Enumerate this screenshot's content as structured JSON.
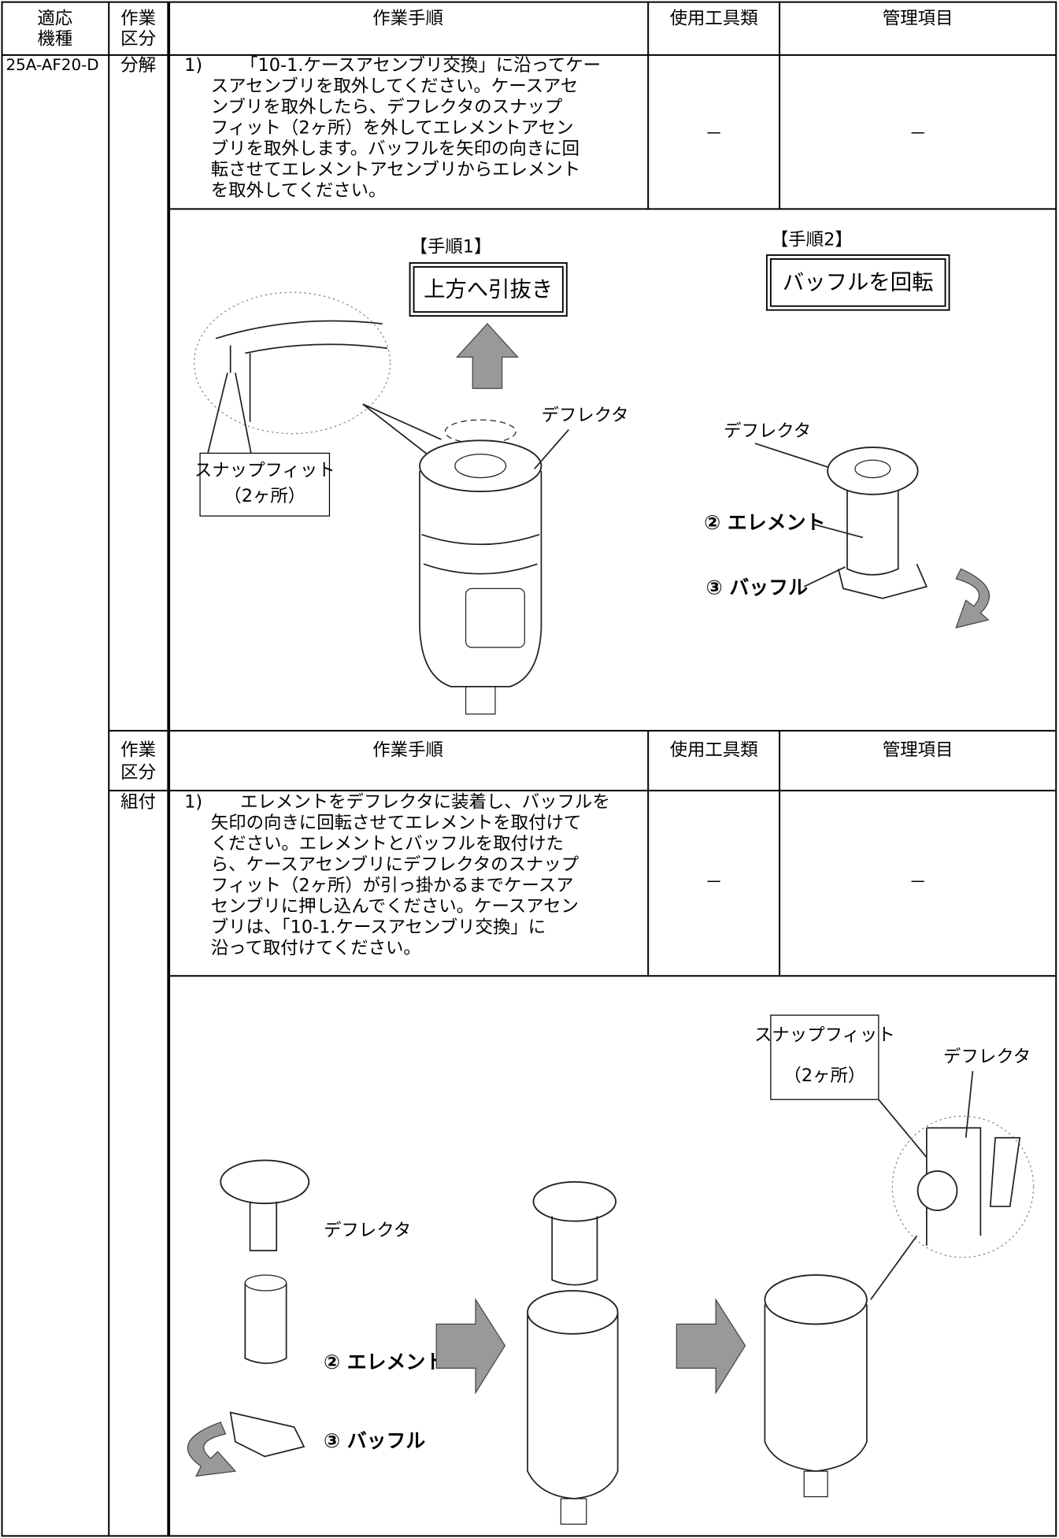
{
  "header": {
    "model": [
      "適応",
      "機種"
    ],
    "division": [
      "作業",
      "区分"
    ],
    "procedure": "作業手順",
    "tools": "使用工具類",
    "items": "管理項目"
  },
  "section1": {
    "model": "25A-AF20-D",
    "division": "分解",
    "step_no": "1)",
    "lines": [
      "「10-1.ケースアセンブリ交換」に沿ってケー",
      "スアセンブリを取外してください。ケースアセ",
      "ンブリを取外したら、デフレクタのスナップ",
      "フィット（2ヶ所）を外してエレメントアセン",
      "ブリを取外します。バッフルを矢印の向きに回",
      "転させてエレメントアセンブリからエレメント",
      "を取外してください。"
    ],
    "tools": "－",
    "items": "－",
    "figure": {
      "step1": "【手順1】",
      "step1_box": "上方へ引抜き",
      "step2": "【手順2】",
      "step2_box": "バッフルを回転",
      "snap": [
        "スナップフィット",
        "（2ヶ所）"
      ],
      "deflector_left": "デフレクタ",
      "deflector_right": "デフレクタ",
      "element": "② エレメント",
      "baffle": "③ バッフル"
    }
  },
  "section2": {
    "header": {
      "division": [
        "作業",
        "区分"
      ],
      "procedure": "作業手順",
      "tools": "使用工具類",
      "items": "管理項目"
    },
    "division": "組付",
    "step_no": "1)",
    "lines": [
      "エレメントをデフレクタに装着し、バッフルを",
      "矢印の向きに回転させてエレメントを取付けて",
      "ください。エレメントとバッフルを取付けた",
      "ら、ケースアセンブリにデフレクタのスナップ",
      "フィット（2ヶ所）が引っ掛かるまでケースア",
      "センブリに押し込んでください。ケースアセン",
      "ブリは、「10-1.ケースアセンブリ交換」に",
      "沿って取付けてください。"
    ],
    "tools": "－",
    "items": "－",
    "figure": {
      "snap": [
        "スナップフィット",
        "（2ヶ所）"
      ],
      "deflector_top": "デフレクタ",
      "deflector_left": "デフレクタ",
      "element": "② エレメント",
      "baffle": "③ バッフル"
    }
  }
}
